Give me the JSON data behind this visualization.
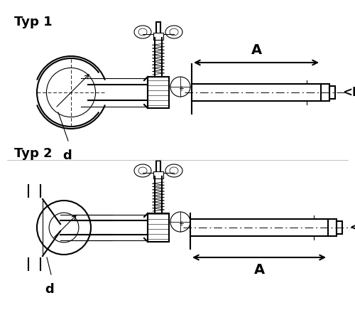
{
  "title1": "Typ 1",
  "title2": "Typ 2",
  "label_d": "d",
  "label_A": "A",
  "label_D": "<D",
  "bg_color": "#ffffff",
  "line_color": "#000000",
  "title_fontsize": 13,
  "label_fontsize": 11,
  "dim_fontsize": 12
}
